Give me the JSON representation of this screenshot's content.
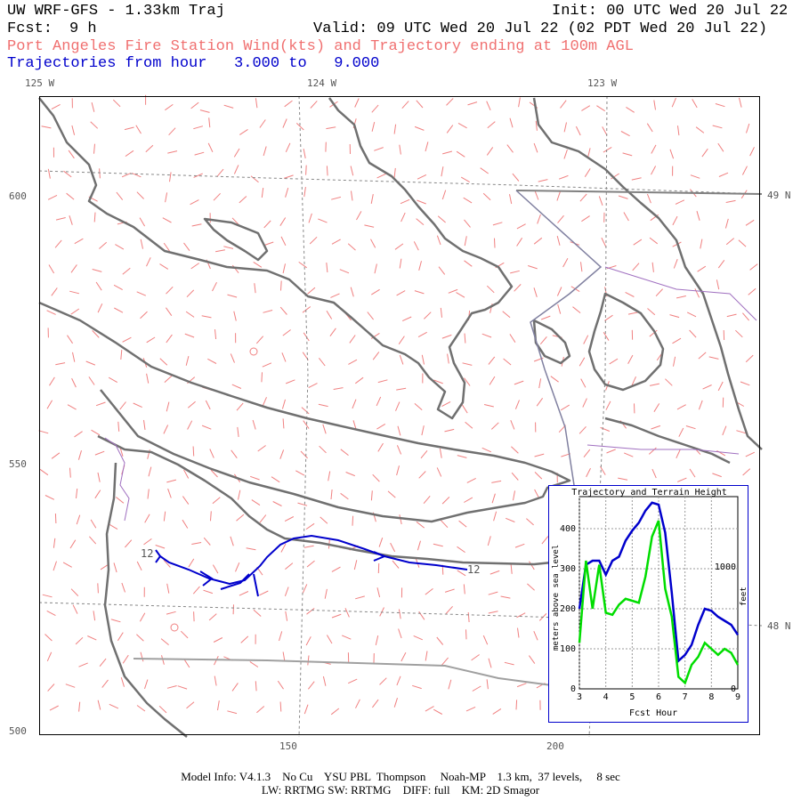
{
  "header": {
    "model_title": "UW WRF-GFS - 1.33km Traj",
    "init": "Init: 00 UTC Wed 20 Jul 22",
    "fcst_label": "Fcst:",
    "fcst_value": "9 h",
    "valid": "Valid: 09 UTC Wed 20 Jul 22 (02 PDT Wed 20 Jul 22)",
    "subtitle": "Port Angeles Fire Station Wind(kts) and Trajectory ending at 100m AGL",
    "traj_range": "Trajectories from hour   3.000 to   9.000"
  },
  "map": {
    "lon_labels": [
      "125 W",
      "124 W",
      "123 W"
    ],
    "lat_labels": [
      "49 N",
      "48 N"
    ],
    "y_ticks": [
      "600",
      "550",
      "500"
    ],
    "x_ticks": [
      "150",
      "200"
    ],
    "trajectory_hour_labels": [
      "12",
      "12"
    ],
    "colors": {
      "coast": "#707070",
      "wind_barb": "#f08080",
      "trajectory": "#0000cc",
      "border": "#a070c0"
    }
  },
  "inset": {
    "title": "Trajectory and Terrain Height",
    "ylabel_left": "meters above sea level",
    "ylabel_right": "feet",
    "xlabel": "Fcst Hour",
    "left_ticks": [
      "0",
      "100",
      "200",
      "300",
      "400"
    ],
    "right_ticks": [
      "0",
      "1000"
    ],
    "x_ticks": [
      "3",
      "4",
      "5",
      "6",
      "7",
      "8",
      "9"
    ]
  },
  "chart_data": {
    "type": "line",
    "title": "Trajectory and Terrain Height",
    "xlabel": "Fcst Hour",
    "ylabel": "meters above sea level",
    "xlim": [
      3,
      9
    ],
    "ylim": [
      0,
      480
    ],
    "x": [
      3.0,
      3.25,
      3.5,
      3.75,
      4.0,
      4.25,
      4.5,
      4.75,
      5.0,
      5.25,
      5.5,
      5.75,
      6.0,
      6.25,
      6.5,
      6.75,
      7.0,
      7.25,
      7.5,
      7.75,
      8.0,
      8.25,
      8.5,
      8.75,
      9.0
    ],
    "series": [
      {
        "color": "#0000cc",
        "values": [
          200,
          310,
          320,
          320,
          285,
          320,
          330,
          370,
          395,
          415,
          445,
          465,
          460,
          390,
          240,
          70,
          85,
          110,
          160,
          200,
          195,
          180,
          170,
          160,
          135
        ]
      },
      {
        "color": "#00dd00",
        "values": [
          115,
          320,
          200,
          310,
          190,
          185,
          210,
          225,
          220,
          215,
          280,
          380,
          420,
          250,
          180,
          30,
          15,
          60,
          80,
          115,
          100,
          85,
          100,
          90,
          60
        ]
      }
    ]
  },
  "footer": {
    "line1": "Model Info: V4.1.3    No Cu    YSU PBL  Thompson     Noah-MP    1.3 km,  37 levels,     8 sec",
    "line2": "LW: RRTMG SW: RRTMG    DIFF: full    KM: 2D Smagor"
  }
}
